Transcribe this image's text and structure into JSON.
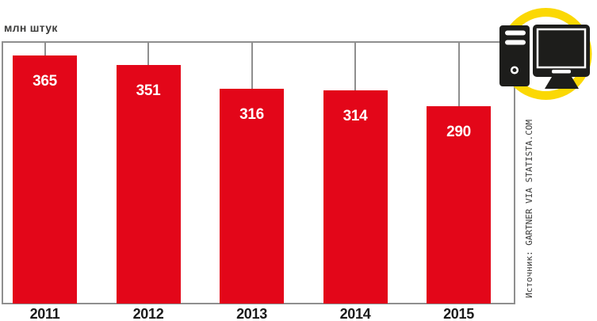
{
  "unit_label": "млн штук",
  "source_label": "Источник: GARTNER VIA STATISTA.COM",
  "icon": {
    "name": "desktop-computer",
    "ring_color": "#fbd804",
    "icon_color": "#1d1d1b"
  },
  "chart_data": {
    "type": "bar",
    "title": "млн штук",
    "categories": [
      "2011",
      "2012",
      "2013",
      "2014",
      "2015"
    ],
    "values": [
      365,
      351,
      316,
      314,
      290
    ],
    "xlabel": "",
    "ylabel": "млн штук",
    "ylim": [
      0,
      388
    ],
    "grid": false,
    "legend": false,
    "value_labels_inside_bars": true,
    "bar_color": "#e30619",
    "frame_color": "#8f8f8f",
    "value_label_color": "#ffffff",
    "axis_label_color": "#1a1a1a"
  }
}
